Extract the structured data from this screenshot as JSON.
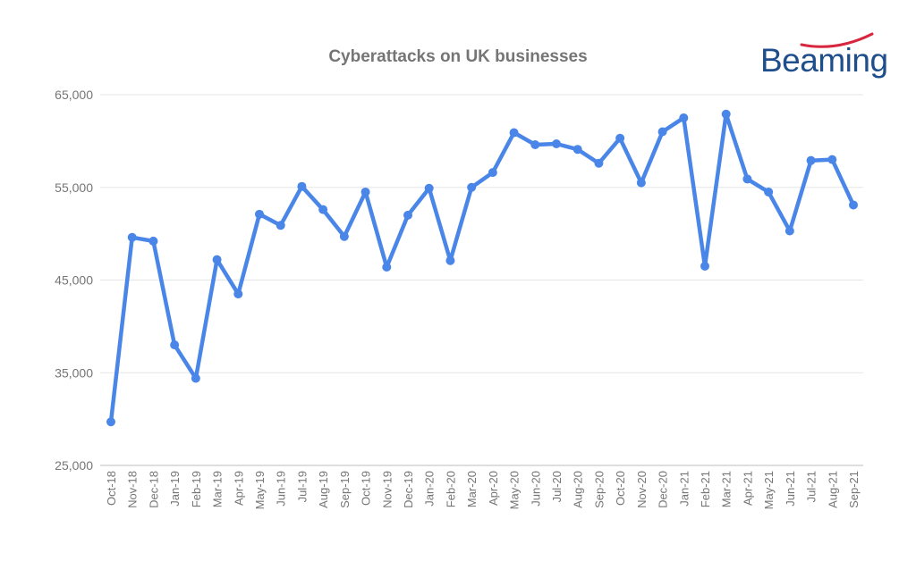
{
  "chart_data": {
    "type": "line",
    "title": "Cyberattacks on UK businesses",
    "xlabel": "",
    "ylabel": "",
    "ylim": [
      25000,
      65000
    ],
    "yticks": [
      25000,
      35000,
      45000,
      55000,
      65000
    ],
    "ytick_labels": [
      "25,000",
      "35,000",
      "45,000",
      "55,000",
      "65,000"
    ],
    "grid": true,
    "legend": "none",
    "line_color": "#4a86e8",
    "categories": [
      "Oct-18",
      "Nov-18",
      "Dec-18",
      "Jan-19",
      "Feb-19",
      "Mar-19",
      "Apr-19",
      "May-19",
      "Jun-19",
      "Jul-19",
      "Aug-19",
      "Sep-19",
      "Oct-19",
      "Nov-19",
      "Dec-19",
      "Jan-20",
      "Feb-20",
      "Mar-20",
      "Apr-20",
      "May-20",
      "Jun-20",
      "Jul-20",
      "Aug-20",
      "Sep-20",
      "Oct-20",
      "Nov-20",
      "Dec-20",
      "Jan-21",
      "Feb-21",
      "Mar-21",
      "Apr-21",
      "May-21",
      "Jun-21",
      "Jul-21",
      "Aug-21",
      "Sep-21"
    ],
    "series": [
      {
        "values": [
          29700,
          49600,
          49200,
          38000,
          34400,
          47200,
          43500,
          52100,
          50900,
          55100,
          52600,
          49700,
          54500,
          46400,
          52000,
          54900,
          47100,
          55000,
          56600,
          60900,
          59600,
          59700,
          59100,
          57600,
          60300,
          55500,
          61000,
          62500,
          46500,
          62900,
          55900,
          54500,
          50300,
          57900,
          58000,
          53100
        ]
      }
    ]
  },
  "logo": {
    "text": "Beaming",
    "color": "#1f4e8c",
    "swoosh_color": "#d7263d"
  }
}
